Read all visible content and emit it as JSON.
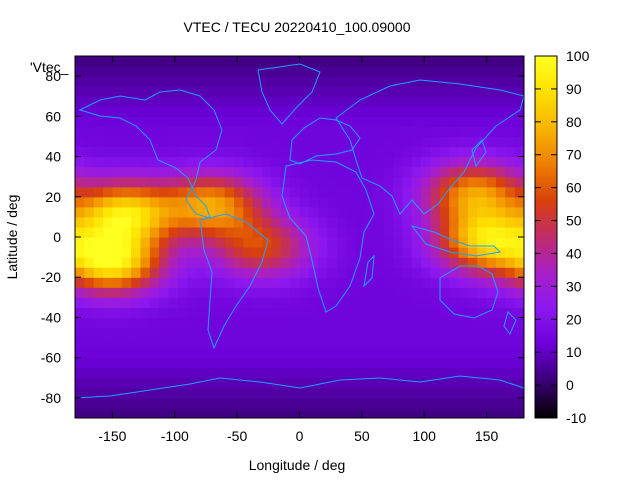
{
  "chart_data": {
    "type": "heatmap",
    "title": "VTEC / TECU 20220410_100.09000",
    "xlabel": "Longitude / deg",
    "ylabel": "Latitude / deg",
    "overlay_key": "'Vtec_",
    "xlim": [
      -180,
      180
    ],
    "ylim": [
      -90,
      90
    ],
    "x_ticks": [
      "-150",
      "-100",
      "-50",
      "0",
      "50",
      "100",
      "150"
    ],
    "y_ticks": [
      "-80",
      "-60",
      "-40",
      "-20",
      "0",
      "20",
      "40",
      "60",
      "80"
    ],
    "colorbar": {
      "min": -10,
      "max": 100,
      "ticks": [
        "100",
        "90",
        "80",
        "70",
        "60",
        "50",
        "40",
        "30",
        "20",
        "10",
        "0",
        "-10"
      ],
      "palette": [
        "#000000",
        "#3a0073",
        "#6a00d8",
        "#8c17f0",
        "#a81fc8",
        "#c02c6c",
        "#d8400b",
        "#ee7f00",
        "#f8b400",
        "#fde000",
        "#ffff20"
      ]
    },
    "grid": false,
    "legend": "none",
    "coastline_color": "#1ea0ff",
    "field_summary": {
      "background_tecu": 14,
      "polar_minimum_tecu": 2,
      "maxima": [
        {
          "lon": -150,
          "lat": -12,
          "tecu": 92
        },
        {
          "lon": -140,
          "lat": 12,
          "tecu": 86
        },
        {
          "lon": 150,
          "lat": -2,
          "tecu": 84
        },
        {
          "lon": 140,
          "lat": 22,
          "tecu": 70
        },
        {
          "lon": -70,
          "lat": 16,
          "tecu": 72
        },
        {
          "lon": -30,
          "lat": -5,
          "tecu": 55
        }
      ]
    }
  }
}
